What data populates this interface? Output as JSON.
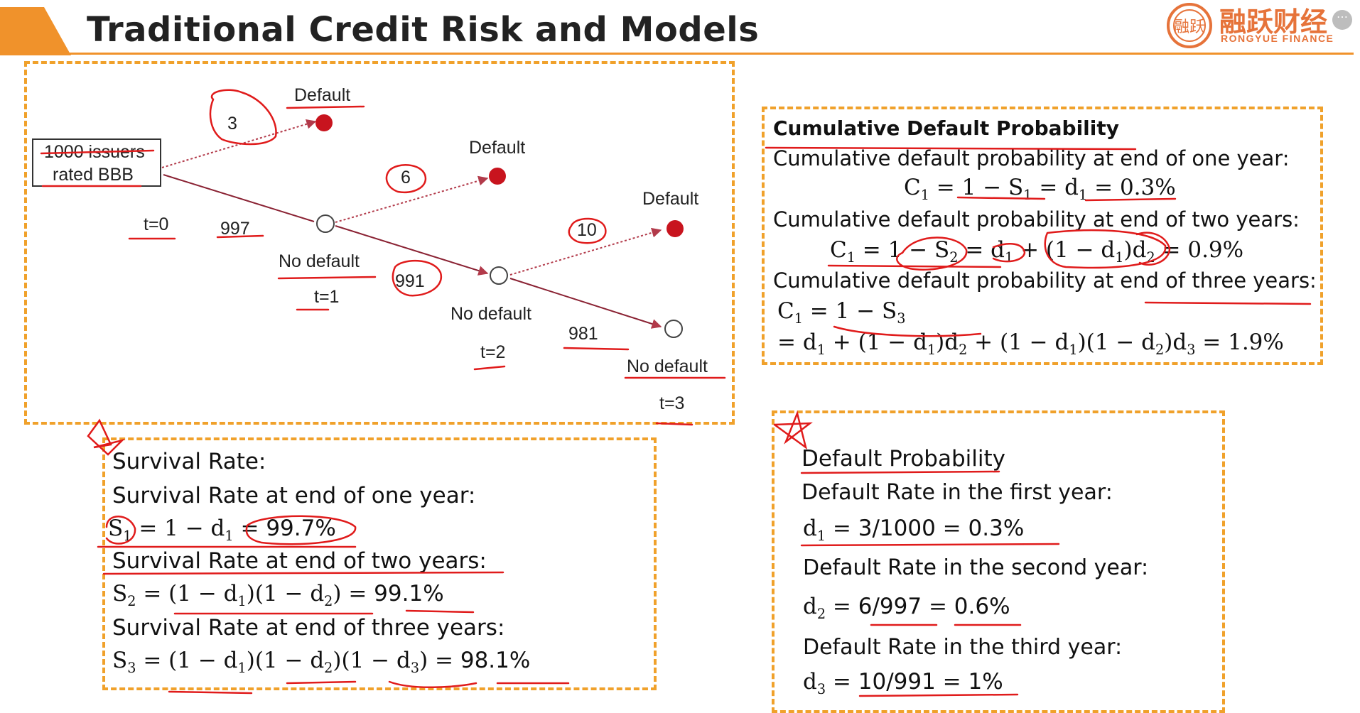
{
  "header": {
    "title": "Traditional Credit Risk and Models",
    "logo_cn": "融跃财经",
    "logo_en": "RONGYUE FINANCE",
    "logo_seal": "融跃",
    "more_icon": "⋯",
    "accent_color": "#f0922b"
  },
  "tree": {
    "root_line1": "1000 issuers",
    "root_line2": "rated BBB",
    "defaults_1": "3",
    "defaults_2": "6",
    "defaults_3": "10",
    "survivors_1": "997",
    "survivors_2": "991",
    "survivors_3": "981",
    "default_label": "Default",
    "no_default_label": "No default",
    "times": [
      "t=0",
      "t=1",
      "t=2",
      "t=3"
    ]
  },
  "cumulative": {
    "title": "Cumulative Default Probability",
    "line1": "Cumulative default probability at end of one year:",
    "line2": "Cumulative default probability at end of two years:",
    "line3": "Cumulative default probability at end of three years:",
    "result1": "0.3%",
    "result2": "0.9%",
    "result3": "1.9%"
  },
  "survival": {
    "title": "Survival Rate:",
    "line1": "Survival Rate at end of one year:",
    "line2": "Survival Rate at end of two years:",
    "line3": "Survival Rate at end of three years:",
    "result1": "99.7%",
    "result2": "99.1%",
    "result3": "98.1%"
  },
  "default_prob": {
    "title": "Default Probability",
    "line1": "Default Rate in the first year:",
    "line2": "Default Rate in the second year:",
    "line3": "Default Rate in the third year:",
    "frac1": "3/1000",
    "frac2": "6/997",
    "frac3": "10/991",
    "result1": "0.3%",
    "result2": "0.6%",
    "result3": "1%"
  },
  "colors": {
    "box_border": "#f0a12b",
    "ink_red": "#e01b1b",
    "default_dot": "#c8141e"
  }
}
